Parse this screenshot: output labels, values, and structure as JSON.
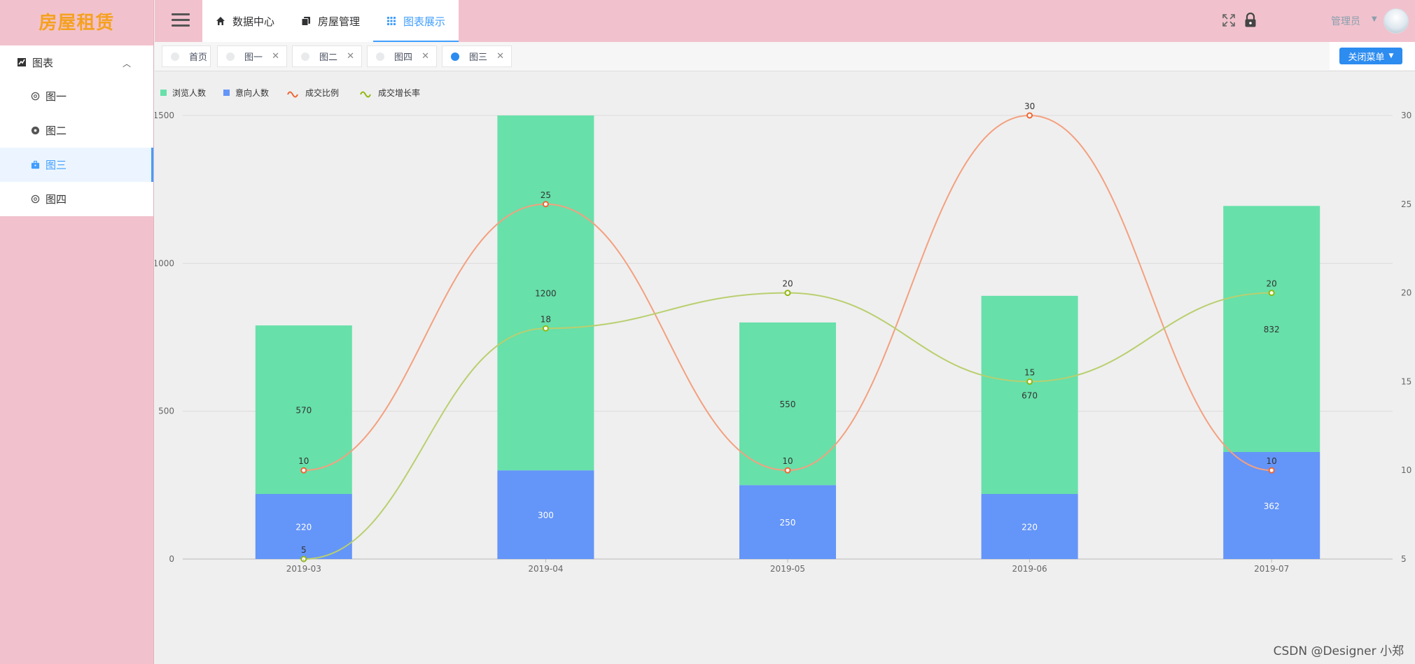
{
  "app": {
    "logo": "房屋租赁"
  },
  "sidebar": {
    "group_label": "图表",
    "items": [
      {
        "label": "图一",
        "active": false
      },
      {
        "label": "图二",
        "active": false
      },
      {
        "label": "图三",
        "active": true
      },
      {
        "label": "图四",
        "active": false
      }
    ]
  },
  "header": {
    "nav": [
      {
        "label": "数据中心",
        "icon": "home-icon",
        "active": false
      },
      {
        "label": "房屋管理",
        "icon": "copy-icon",
        "active": false
      },
      {
        "label": "图表展示",
        "icon": "grid-icon",
        "active": true
      }
    ],
    "user_name": "管理员"
  },
  "tabs": {
    "items": [
      {
        "label": "首页",
        "closable": false,
        "active": false
      },
      {
        "label": "图一",
        "closable": true,
        "active": false
      },
      {
        "label": "图二",
        "closable": true,
        "active": false
      },
      {
        "label": "图四",
        "closable": true,
        "active": false
      },
      {
        "label": "图三",
        "closable": true,
        "active": true
      }
    ],
    "close_menu_label": "关闭菜单"
  },
  "colors": {
    "accent": "#409eff",
    "tab_active": "#2d8cf0",
    "bar_browse": "#67e0aa",
    "bar_intent": "#6495f8",
    "line_ratio": "#f4a07f",
    "line_ratio_point": "#ee6633",
    "line_growth": "#b9cf6f",
    "line_growth_point": "#91b810"
  },
  "chart_data": {
    "type": "bar",
    "categories": [
      "2019-03",
      "2019-04",
      "2019-05",
      "2019-06",
      "2019-07"
    ],
    "series": [
      {
        "name": "浏览人数",
        "kind": "bar",
        "stack": "total",
        "values": [
          570,
          1200,
          550,
          670,
          832
        ],
        "color": "#67e0aa"
      },
      {
        "name": "意向人数",
        "kind": "bar",
        "stack": "total",
        "values": [
          220,
          300,
          250,
          220,
          362
        ],
        "color": "#6495f8"
      },
      {
        "name": "成交比例",
        "kind": "line",
        "axis": "right",
        "smooth": true,
        "values": [
          10,
          25,
          10,
          30,
          10
        ],
        "color": "#f4a07f"
      },
      {
        "name": "成交增长率",
        "kind": "line",
        "axis": "right",
        "smooth": true,
        "values": [
          5,
          18,
          20,
          15,
          20
        ],
        "color": "#b9cf6f"
      }
    ],
    "y_left": {
      "range": [
        0,
        1500
      ],
      "ticks": [
        0,
        500,
        1000,
        1500
      ]
    },
    "y_right": {
      "range": [
        5,
        30
      ],
      "ticks": [
        5,
        10,
        15,
        20,
        25,
        30
      ]
    },
    "legend_position": "top-left",
    "grid": true
  },
  "watermark": "CSDN @Designer 小郑"
}
